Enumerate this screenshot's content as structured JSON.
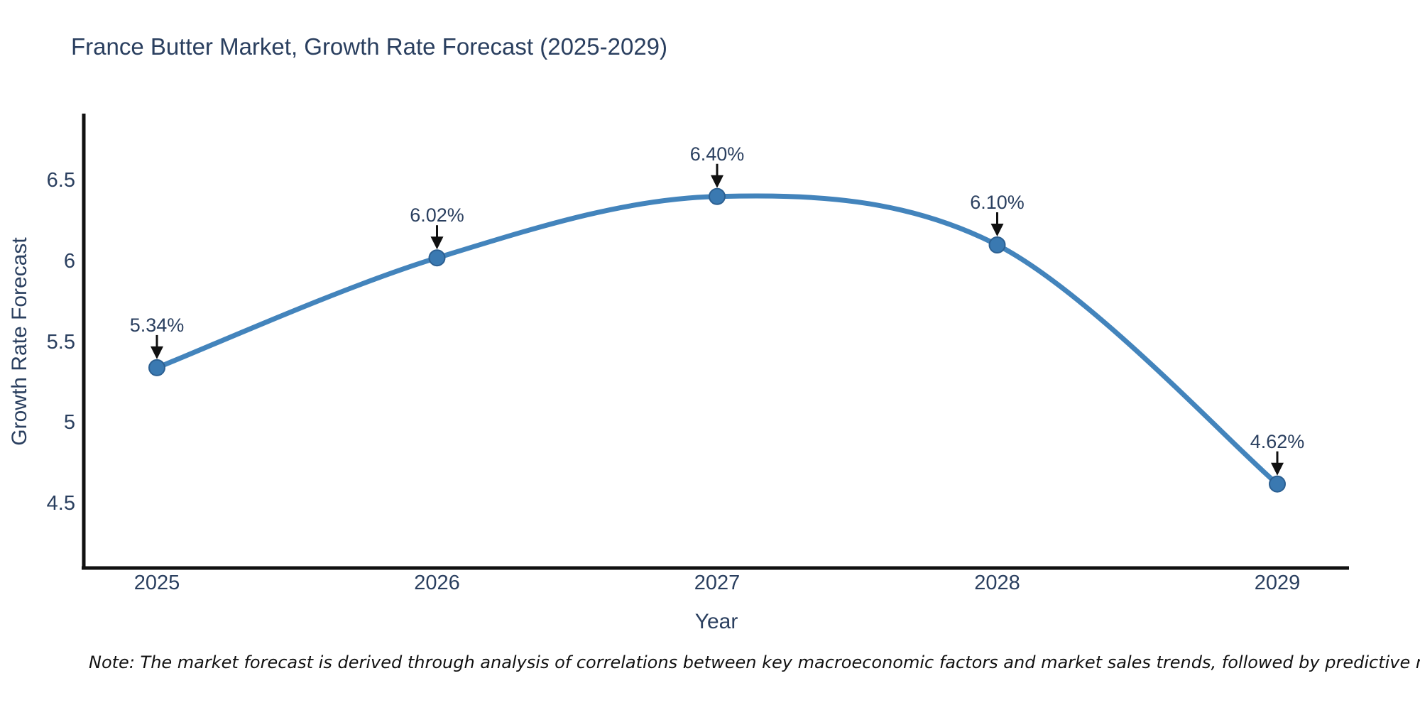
{
  "title": "France Butter Market, Growth Rate Forecast (2025-2029)",
  "note": "Note: The market forecast is derived through analysis of correlations between key macroeconomic factors and market sales trends, followed by predictive modeling to project future sales",
  "chart_data": {
    "type": "line",
    "line_shape": "spline",
    "title": "France Butter Market, Growth Rate Forecast (2025-2029)",
    "xlabel": "Year",
    "ylabel": "Growth Rate Forecast",
    "x": [
      2025,
      2026,
      2027,
      2028,
      2029
    ],
    "series": [
      {
        "name": "Growth Rate Forecast",
        "values": [
          5.34,
          6.02,
          6.4,
          6.1,
          4.62
        ],
        "point_labels": [
          "5.34%",
          "6.02%",
          "6.40%",
          "6.10%",
          "4.62%"
        ]
      }
    ],
    "xtick_labels": [
      "2025",
      "2026",
      "2027",
      "2028",
      "2029"
    ],
    "ytick_labels": [
      "6.5",
      "6",
      "5.5",
      "5",
      "4.5"
    ],
    "yticks": [
      6.5,
      6.0,
      5.5,
      5.0,
      4.5
    ],
    "ylim_visible": [
      4.5,
      6.5
    ],
    "grid": false,
    "legend_position": "none",
    "annotations_have_arrows": true,
    "colors": {
      "line": "#4384bc",
      "marker": "#3a79b1",
      "marker_border": "#2c6092",
      "axis": "#111111",
      "arrow": "#111111",
      "text": "#2a3f5f",
      "note_text": "#111111",
      "background": "#ffffff"
    }
  }
}
